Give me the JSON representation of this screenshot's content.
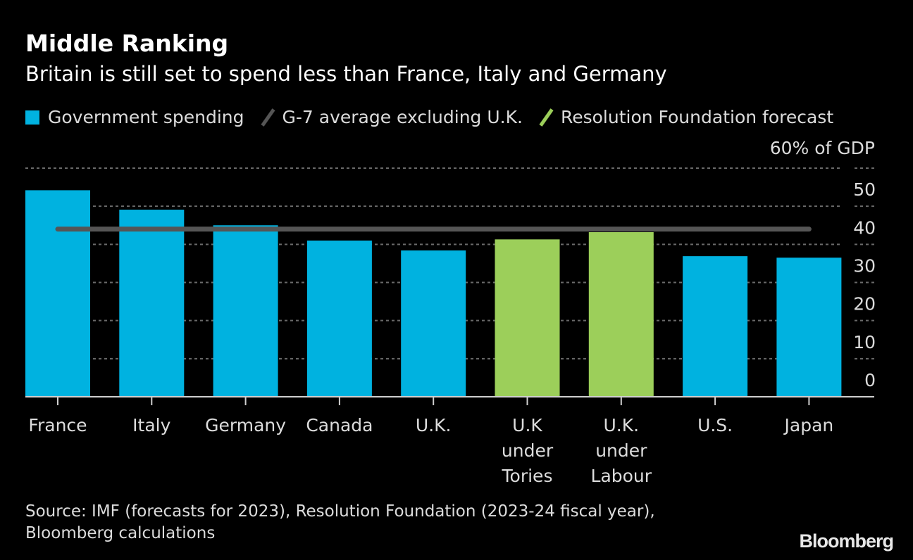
{
  "header": {
    "title": "Middle Ranking",
    "subtitle": "Britain is still set to spend less than France, Italy and Germany"
  },
  "legend": [
    {
      "label": "Government spending",
      "color": "#00b2e0",
      "shape": "box"
    },
    {
      "label": "G-7 average excluding U.K.",
      "color": "#555555",
      "shape": "line"
    },
    {
      "label": "Resolution Foundation forecast",
      "color": "#9ccf5a",
      "shape": "line"
    }
  ],
  "unit_label": "60% of GDP",
  "chart_data": {
    "type": "bar",
    "title": "Middle Ranking",
    "subtitle": "Britain is still set to spend less than France, Italy and Germany",
    "xlabel": "",
    "ylabel": "% of GDP",
    "ylim": [
      0,
      60
    ],
    "yticks": [
      0,
      10,
      20,
      30,
      40,
      50,
      60
    ],
    "ytick_labels": [
      "0",
      "10",
      "20",
      "30",
      "40",
      "50",
      "60% of GDP"
    ],
    "grid": true,
    "legend_position": "top-left",
    "categories": [
      "France",
      "Italy",
      "Germany",
      "Canada",
      "U.K.",
      "U.K under Tories",
      "U.K. under Labour",
      "U.S.",
      "Japan"
    ],
    "category_lines": [
      [
        "France"
      ],
      [
        "Italy"
      ],
      [
        "Germany"
      ],
      [
        "Canada"
      ],
      [
        "U.K."
      ],
      [
        "U.K",
        "under",
        "Tories"
      ],
      [
        "U.K.",
        "under",
        "Labour"
      ],
      [
        "U.S."
      ],
      [
        "Japan"
      ]
    ],
    "series": [
      {
        "name": "Government spending",
        "values": [
          54.2,
          49.1,
          45.0,
          41.0,
          38.4,
          41.3,
          43.2,
          36.9,
          36.5
        ],
        "colors": [
          "#00b2e0",
          "#00b2e0",
          "#00b2e0",
          "#00b2e0",
          "#00b2e0",
          "#9ccf5a",
          "#9ccf5a",
          "#00b2e0",
          "#00b2e0"
        ]
      },
      {
        "name": "G-7 average excluding U.K.",
        "type": "hline",
        "value": 44.0,
        "color": "#555555"
      }
    ],
    "forecast_categories": [
      "U.K under Tories",
      "U.K. under Labour"
    ]
  },
  "footer": {
    "source_line1": "Source: IMF (forecasts for 2023), Resolution Foundation (2023-24 fiscal year),",
    "source_line2": "Bloomberg calculations",
    "brand": "Bloomberg"
  }
}
